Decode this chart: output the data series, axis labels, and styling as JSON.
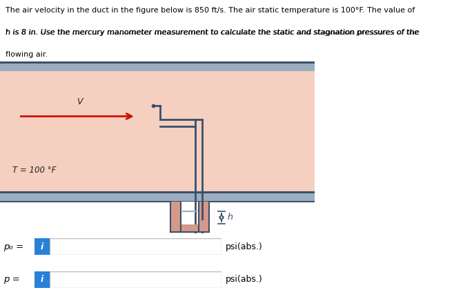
{
  "text_header_line1": "The air velocity in the duct in the figure below is 850 ft/s. The air static temperature is 100°F. The value of",
  "text_header_line2": "h is 8 in. Use the mercury manometer measurement to calculate the static and stagnation pressures of the",
  "text_header_line3": "flowing air.",
  "bg_color": "#f5cfc0",
  "duct_wall_color": "#9baec0",
  "duct_wall_dark": "#3a5068",
  "tube_color": "#3a5068",
  "mercury_color": "#d4998a",
  "mercury_border": "#c07060",
  "arrow_color": "#cc1100",
  "label_V": "V",
  "label_T": "T = 100 °F",
  "label_h": "h",
  "label_p0": "p₀ =",
  "label_p": "p =",
  "label_psi1": "psi(abs.)",
  "label_psi2": "psi(abs.)",
  "info_color": "#2980d9",
  "fig_bg": "#ffffff",
  "gray_line_color": "#9baec0"
}
